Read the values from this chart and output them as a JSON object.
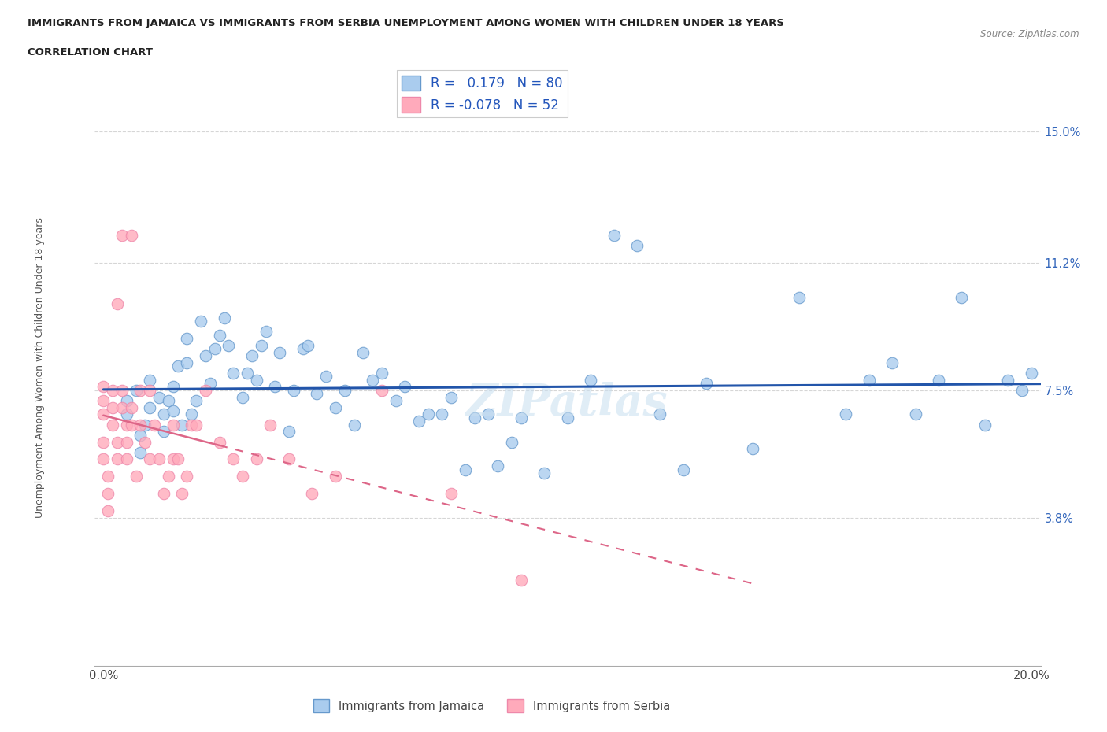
{
  "title_line1": "IMMIGRANTS FROM JAMAICA VS IMMIGRANTS FROM SERBIA UNEMPLOYMENT AMONG WOMEN WITH CHILDREN UNDER 18 YEARS",
  "title_line2": "CORRELATION CHART",
  "source": "Source: ZipAtlas.com",
  "ylabel": "Unemployment Among Women with Children Under 18 years",
  "xlim": [
    -0.002,
    0.202
  ],
  "ylim": [
    -0.005,
    0.168
  ],
  "xtick_vals": [
    0.0,
    0.05,
    0.1,
    0.15,
    0.2
  ],
  "xtick_labels": [
    "0.0%",
    "",
    "",
    "",
    "20.0%"
  ],
  "ytick_vals": [
    0.038,
    0.075,
    0.112,
    0.15
  ],
  "ytick_labels": [
    "3.8%",
    "7.5%",
    "11.2%",
    "15.0%"
  ],
  "grid_color": "#cccccc",
  "jamaica_color": "#aaccee",
  "jamaica_edge_color": "#6699cc",
  "serbia_color": "#ffaabb",
  "serbia_edge_color": "#ee88aa",
  "jamaica_R": 0.179,
  "jamaica_N": 80,
  "serbia_R": -0.078,
  "serbia_N": 52,
  "jamaica_line_color": "#2255aa",
  "serbia_line_color": "#dd6688",
  "legend_jamaica": "Immigrants from Jamaica",
  "legend_serbia": "Immigrants from Serbia",
  "jamaica_x": [
    0.005,
    0.005,
    0.007,
    0.008,
    0.008,
    0.009,
    0.01,
    0.01,
    0.012,
    0.013,
    0.013,
    0.014,
    0.015,
    0.015,
    0.016,
    0.017,
    0.018,
    0.018,
    0.019,
    0.02,
    0.021,
    0.022,
    0.023,
    0.024,
    0.025,
    0.026,
    0.027,
    0.028,
    0.03,
    0.031,
    0.032,
    0.033,
    0.034,
    0.035,
    0.037,
    0.038,
    0.04,
    0.041,
    0.043,
    0.044,
    0.046,
    0.048,
    0.05,
    0.052,
    0.054,
    0.056,
    0.058,
    0.06,
    0.063,
    0.065,
    0.068,
    0.07,
    0.073,
    0.075,
    0.078,
    0.08,
    0.083,
    0.085,
    0.088,
    0.09,
    0.095,
    0.1,
    0.105,
    0.11,
    0.115,
    0.12,
    0.125,
    0.13,
    0.14,
    0.15,
    0.16,
    0.165,
    0.17,
    0.175,
    0.18,
    0.185,
    0.19,
    0.195,
    0.198,
    0.2
  ],
  "jamaica_y": [
    0.068,
    0.072,
    0.075,
    0.062,
    0.057,
    0.065,
    0.078,
    0.07,
    0.073,
    0.068,
    0.063,
    0.072,
    0.076,
    0.069,
    0.082,
    0.065,
    0.09,
    0.083,
    0.068,
    0.072,
    0.095,
    0.085,
    0.077,
    0.087,
    0.091,
    0.096,
    0.088,
    0.08,
    0.073,
    0.08,
    0.085,
    0.078,
    0.088,
    0.092,
    0.076,
    0.086,
    0.063,
    0.075,
    0.087,
    0.088,
    0.074,
    0.079,
    0.07,
    0.075,
    0.065,
    0.086,
    0.078,
    0.08,
    0.072,
    0.076,
    0.066,
    0.068,
    0.068,
    0.073,
    0.052,
    0.067,
    0.068,
    0.053,
    0.06,
    0.067,
    0.051,
    0.067,
    0.078,
    0.12,
    0.117,
    0.068,
    0.052,
    0.077,
    0.058,
    0.102,
    0.068,
    0.078,
    0.083,
    0.068,
    0.078,
    0.102,
    0.065,
    0.078,
    0.075,
    0.08
  ],
  "serbia_x": [
    0.0,
    0.0,
    0.0,
    0.0,
    0.0,
    0.001,
    0.001,
    0.001,
    0.002,
    0.002,
    0.002,
    0.003,
    0.003,
    0.003,
    0.004,
    0.004,
    0.004,
    0.005,
    0.005,
    0.005,
    0.006,
    0.006,
    0.006,
    0.007,
    0.008,
    0.008,
    0.009,
    0.01,
    0.01,
    0.011,
    0.012,
    0.013,
    0.014,
    0.015,
    0.015,
    0.016,
    0.017,
    0.018,
    0.019,
    0.02,
    0.022,
    0.025,
    0.028,
    0.03,
    0.033,
    0.036,
    0.04,
    0.045,
    0.05,
    0.06,
    0.075,
    0.09
  ],
  "serbia_y": [
    0.068,
    0.072,
    0.076,
    0.06,
    0.055,
    0.05,
    0.045,
    0.04,
    0.065,
    0.07,
    0.075,
    0.06,
    0.055,
    0.1,
    0.12,
    0.075,
    0.07,
    0.065,
    0.055,
    0.06,
    0.12,
    0.07,
    0.065,
    0.05,
    0.065,
    0.075,
    0.06,
    0.075,
    0.055,
    0.065,
    0.055,
    0.045,
    0.05,
    0.055,
    0.065,
    0.055,
    0.045,
    0.05,
    0.065,
    0.065,
    0.075,
    0.06,
    0.055,
    0.05,
    0.055,
    0.065,
    0.055,
    0.045,
    0.05,
    0.075,
    0.045,
    0.02
  ]
}
